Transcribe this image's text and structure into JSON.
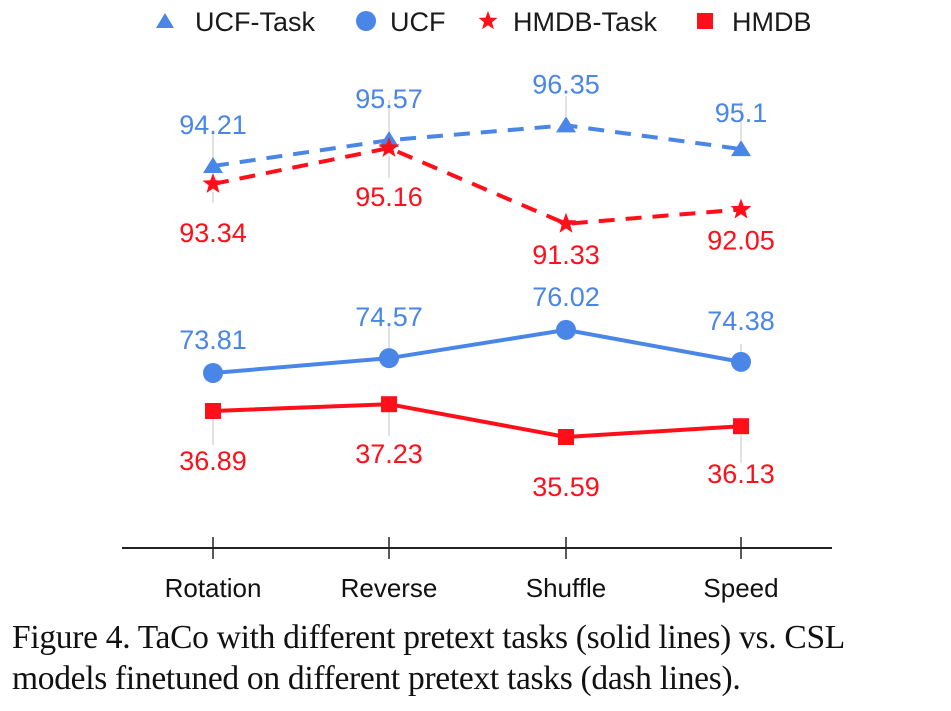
{
  "chart_data": {
    "type": "line",
    "title": "",
    "xlabel": "",
    "ylabel": "",
    "categories": [
      "Rotation",
      "Reverse",
      "Shuffle",
      "Speed"
    ],
    "grid": false,
    "legend_position": "top",
    "series": [
      {
        "name": "UCF-Task",
        "marker": "triangle",
        "line_style": "dashed",
        "color": "#4A86E8",
        "values": [
          94.21,
          95.57,
          96.35,
          95.1
        ],
        "labels": [
          "94.21",
          "95.57",
          "96.35",
          "95.1"
        ],
        "label_position": "above"
      },
      {
        "name": "UCF",
        "marker": "circle",
        "line_style": "solid",
        "color": "#4A86E8",
        "values": [
          73.81,
          74.57,
          76.02,
          74.38
        ],
        "labels": [
          "73.81",
          "74.57",
          "76.02",
          "74.38"
        ],
        "label_position": "above"
      },
      {
        "name": "HMDB-Task",
        "marker": "star",
        "line_style": "dashed",
        "color": "#FF0F1A",
        "values": [
          93.34,
          95.16,
          91.33,
          92.05
        ],
        "labels": [
          "93.34",
          "95.16",
          "91.33",
          "92.05"
        ],
        "label_position": "below"
      },
      {
        "name": "HMDB",
        "marker": "square",
        "line_style": "solid",
        "color": "#FF0F1A",
        "values": [
          36.89,
          37.23,
          35.59,
          36.13
        ],
        "labels": [
          "36.89",
          "37.23",
          "35.59",
          "36.13"
        ],
        "label_position": "below"
      }
    ]
  },
  "caption": {
    "line1": "Figure 4. TaCo with different pretext tasks (solid lines) vs.  CSL",
    "line2": "models finetuned on different pretext tasks (dash lines)."
  }
}
